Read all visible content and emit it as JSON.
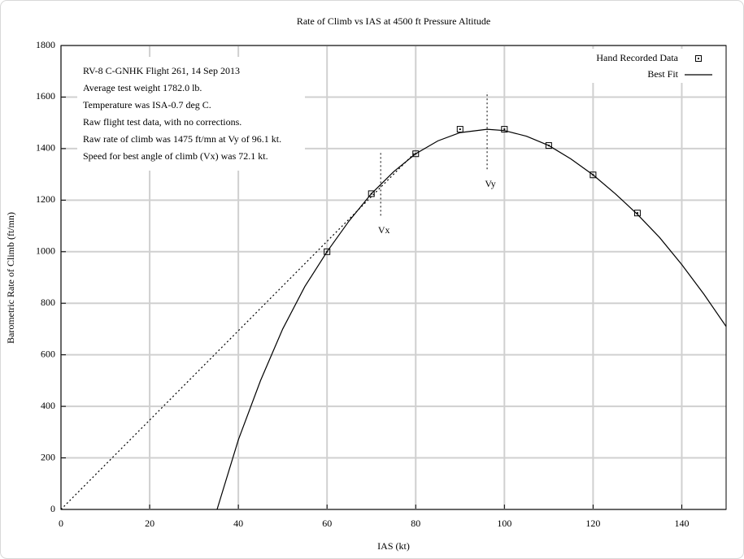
{
  "chart_data": {
    "type": "scatter",
    "title": "Rate of Climb vs IAS at 4500 ft Pressure Altitude",
    "x_label": "IAS (kt)",
    "y_label": "Barometric Rate of Climb (ft/mn)",
    "xlim": [
      0,
      150
    ],
    "ylim": [
      0,
      1800
    ],
    "xticks": [
      0,
      20,
      40,
      60,
      80,
      100,
      120,
      140
    ],
    "yticks": [
      0,
      200,
      400,
      600,
      800,
      1000,
      1200,
      1400,
      1600,
      1800
    ],
    "grid": true,
    "legend": "upper right",
    "notes": [
      "RV-8 C-GNHK Flight 261, 14 Sep 2013",
      "Average test weight 1782.0 lb.",
      "Temperature was ISA-0.7 deg C.",
      "Raw flight test data, with no corrections.",
      "Raw rate of climb was 1475 ft/mn at Vy of 96.1 kt.",
      "Speed for best angle of climb (Vx) was 72.1 kt."
    ],
    "series": [
      {
        "name": "Hand Recorded Data",
        "color": "#000000",
        "mode": "markers",
        "x": [
          60,
          70,
          80,
          90,
          100,
          110,
          120,
          130
        ],
        "values": [
          1000,
          1225,
          1380,
          1475,
          1475,
          1412,
          1298,
          1150
        ]
      },
      {
        "name": "Best Fit",
        "color": "#000000",
        "mode": "line",
        "x": [
          35.2,
          40,
          45,
          50,
          55,
          60,
          65,
          70,
          75,
          80,
          85,
          90,
          96.1,
          100,
          105,
          110,
          115,
          120,
          125,
          130,
          135,
          140,
          145,
          150
        ],
        "values": [
          0,
          270,
          500,
          700,
          865,
          1000,
          1120,
          1225,
          1310,
          1380,
          1430,
          1462,
          1475,
          1470,
          1448,
          1412,
          1360,
          1298,
          1225,
          1145,
          1055,
          950,
          835,
          710
        ]
      },
      {
        "color": "#000000",
        "mode": "dotted",
        "x": [
          0,
          80
        ],
        "values": [
          0,
          1387
        ]
      }
    ],
    "annotations": [
      {
        "text": "Vx",
        "x": 72.1,
        "y1": 1140,
        "y2": 1390
      },
      {
        "text": "Vy",
        "x": 96.1,
        "y1": 1320,
        "y2": 1620
      }
    ]
  }
}
